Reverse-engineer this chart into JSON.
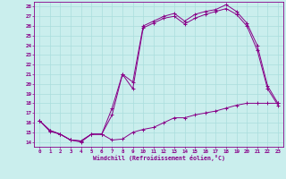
{
  "xlabel": "Windchill (Refroidissement éolien,°C)",
  "bg_color": "#caeeed",
  "line_color": "#880088",
  "grid_color": "#aadddd",
  "ylim": [
    13.5,
    28.5
  ],
  "xlim": [
    -0.5,
    23.5
  ],
  "yticks": [
    14,
    15,
    16,
    17,
    18,
    19,
    20,
    21,
    22,
    23,
    24,
    25,
    26,
    27,
    28
  ],
  "xticks": [
    0,
    1,
    2,
    3,
    4,
    5,
    6,
    7,
    8,
    9,
    10,
    11,
    12,
    13,
    14,
    15,
    16,
    17,
    18,
    19,
    20,
    21,
    22,
    23
  ],
  "series1_x": [
    0,
    1,
    2,
    3,
    4,
    5,
    6,
    7,
    8,
    9,
    10,
    11,
    12,
    13,
    14,
    15,
    16,
    17,
    18,
    19,
    20,
    21,
    22,
    23
  ],
  "series1_y": [
    16.2,
    15.2,
    14.8,
    14.2,
    14.1,
    14.8,
    14.8,
    16.8,
    21.0,
    20.2,
    26.0,
    26.5,
    27.0,
    27.3,
    26.5,
    27.2,
    27.5,
    27.7,
    28.2,
    27.5,
    26.3,
    24.0,
    19.8,
    18.0
  ],
  "series2_x": [
    0,
    1,
    2,
    3,
    4,
    5,
    6,
    7,
    8,
    9,
    10,
    11,
    12,
    13,
    14,
    15,
    16,
    17,
    18,
    19,
    20,
    21,
    22,
    23
  ],
  "series2_y": [
    16.2,
    15.1,
    14.8,
    14.2,
    14.0,
    14.8,
    14.8,
    14.2,
    14.3,
    15.0,
    15.3,
    15.5,
    16.0,
    16.5,
    16.5,
    16.8,
    17.0,
    17.2,
    17.5,
    17.8,
    18.0,
    18.0,
    18.0,
    18.0
  ],
  "series3_x": [
    0,
    1,
    2,
    3,
    4,
    5,
    6,
    7,
    8,
    9,
    10,
    11,
    12,
    13,
    14,
    15,
    16,
    17,
    18,
    19,
    20,
    21,
    22,
    23
  ],
  "series3_y": [
    16.2,
    15.2,
    14.8,
    14.2,
    14.1,
    14.8,
    14.8,
    17.5,
    21.0,
    19.5,
    25.8,
    26.3,
    26.8,
    27.0,
    26.2,
    26.8,
    27.2,
    27.5,
    27.8,
    27.2,
    26.0,
    23.5,
    19.5,
    17.8
  ]
}
